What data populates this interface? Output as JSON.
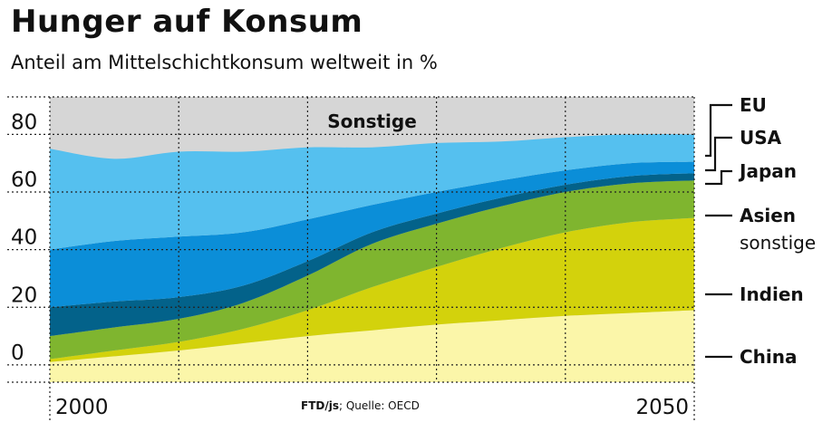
{
  "header": {
    "title": "Hunger auf Konsum",
    "subtitle": "Anteil am Mittelschichtkonsum weltweit in %"
  },
  "footer": {
    "source_credit": "FTD/js",
    "source_text": "; Quelle: OECD"
  },
  "colors": {
    "China": "#fbf6a9",
    "Indien": "#d3d20c",
    "Asien sonstige": "#7fb52f",
    "Japan": "#03628a",
    "USA": "#0b8ed8",
    "EU": "#55c0ef",
    "Sonstige": "#d6d6d6"
  },
  "chart_data": {
    "type": "area",
    "stacked": true,
    "title": "Hunger auf Konsum",
    "subtitle": "Anteil am Mittelschichtkonsum weltweit in %",
    "x": [
      2000,
      2005,
      2010,
      2015,
      2020,
      2025,
      2030,
      2035,
      2040,
      2045,
      2050
    ],
    "x_tick_labels": [
      "2000",
      "2050"
    ],
    "y_ticks": [
      0,
      20,
      40,
      60,
      80
    ],
    "ylim": [
      -6,
      93
    ],
    "grid": true,
    "legend_position": "right",
    "series": [
      {
        "name": "China",
        "values": [
          1,
          3,
          5,
          7.5,
          10,
          12,
          14,
          15.5,
          17,
          18,
          19
        ]
      },
      {
        "name": "Indien",
        "values": [
          1,
          2,
          3,
          5,
          9,
          15,
          20,
          25,
          29,
          31.5,
          32
        ]
      },
      {
        "name": "Asien sonstige",
        "values": [
          8,
          8,
          8,
          9,
          12,
          15,
          15,
          14.5,
          14,
          13.5,
          13
        ]
      },
      {
        "name": "Japan",
        "values": [
          10,
          9,
          7.5,
          6,
          5,
          4,
          3.5,
          3,
          2.5,
          2.5,
          2.5
        ]
      },
      {
        "name": "USA",
        "values": [
          20,
          21,
          21,
          18.5,
          14.5,
          9.5,
          7.5,
          6,
          5,
          4.5,
          4
        ]
      },
      {
        "name": "EU",
        "values": [
          35,
          28.5,
          29.5,
          28,
          25,
          20,
          17,
          13.5,
          11.5,
          10,
          9.5
        ]
      },
      {
        "name": "Sonstige",
        "label": "Sonstige"
      }
    ],
    "legend": [
      {
        "text": "EU",
        "series": "EU"
      },
      {
        "text": "USA",
        "series": "USA"
      },
      {
        "text": "Japan",
        "series": "Japan"
      },
      {
        "text": "Asien",
        "subtext": "sonstige",
        "series": "Asien sonstige"
      },
      {
        "text": "Indien",
        "series": "Indien"
      },
      {
        "text": "China",
        "series": "China"
      }
    ]
  }
}
